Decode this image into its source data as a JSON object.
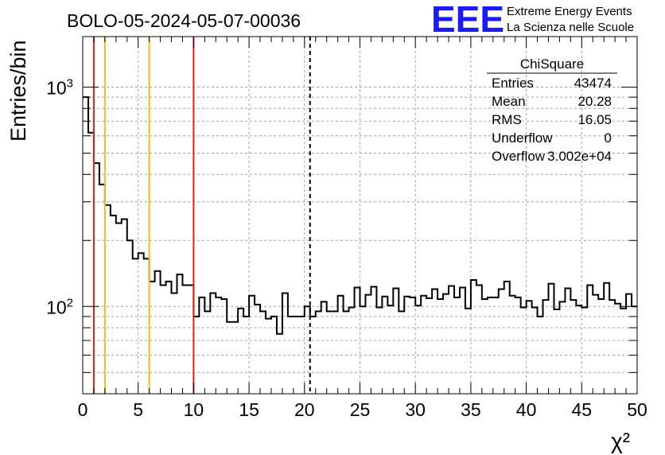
{
  "chart_data": {
    "type": "histogram",
    "title": "BOLO-05-2024-05-07-00036",
    "xlabel": "χ²",
    "ylabel": "Entries/bin",
    "xlim": [
      0,
      50
    ],
    "ylim": [
      40,
      1700
    ],
    "yscale": "log",
    "grid": true,
    "x_ticks": [
      "0",
      "5",
      "10",
      "15",
      "20",
      "25",
      "30",
      "35",
      "40",
      "45",
      "50"
    ],
    "y_ticks": [
      {
        "base": "10",
        "exp": "2"
      },
      {
        "base": "10",
        "exp": "3"
      }
    ],
    "bin_width": 0.5,
    "bin_start": 0,
    "values": [
      900,
      620,
      450,
      360,
      290,
      260,
      240,
      250,
      200,
      165,
      175,
      165,
      130,
      145,
      125,
      130,
      115,
      140,
      125,
      125,
      90,
      110,
      95,
      115,
      110,
      108,
      85,
      85,
      98,
      90,
      112,
      102,
      95,
      88,
      90,
      75,
      115,
      90,
      90,
      90,
      100,
      90,
      95,
      105,
      95,
      95,
      112,
      95,
      99,
      122,
      100,
      113,
      123,
      99,
      111,
      101,
      121,
      95,
      111,
      110,
      101,
      112,
      109,
      120,
      108,
      114,
      124,
      110,
      122,
      98,
      132,
      125,
      108,
      110,
      110,
      120,
      130,
      112,
      110,
      99,
      106,
      99,
      90,
      107,
      127,
      97,
      105,
      121,
      107,
      101,
      99,
      125,
      113,
      108,
      128,
      107,
      103,
      98,
      114,
      100
    ],
    "vertical_lines": [
      {
        "x": 1,
        "color": "#e3211c",
        "style": "solid"
      },
      {
        "x": 2,
        "color": "#f0c014",
        "style": "solid"
      },
      {
        "x": 6,
        "color": "#f0c014",
        "style": "solid"
      },
      {
        "x": 10,
        "color": "#e3211c",
        "style": "solid"
      },
      {
        "x": 20.5,
        "color": "#000000",
        "style": "dashed"
      }
    ],
    "stats_box": {
      "name": "ChiSquare",
      "rows": [
        {
          "label": "Entries",
          "value": "43474"
        },
        {
          "label": "Mean",
          "value": "20.28"
        },
        {
          "label": "RMS",
          "value": "16.05"
        },
        {
          "label": "Underflow",
          "value": "0"
        },
        {
          "label": "Overflow",
          "value": "3.002e+04"
        }
      ]
    }
  },
  "logo": {
    "text": "EEE",
    "line1": "Extreme Energy Events",
    "line2": "La Scienza nelle Scuole",
    "color": "#1a1aff"
  }
}
